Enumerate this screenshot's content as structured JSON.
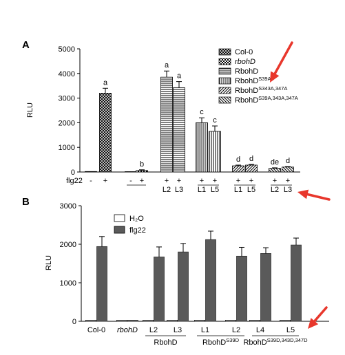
{
  "chart_data": [
    {
      "panel": "A",
      "type": "bar",
      "ylabel": "RLU",
      "ylim": [
        0,
        5000
      ],
      "yticks": [
        "0",
        "1000",
        "2000",
        "3000",
        "4000",
        "5000"
      ],
      "treatment_label": "flg22",
      "legend_placement": "top-right",
      "legend": [
        {
          "name": "Col-0",
          "pattern": "crosshatch"
        },
        {
          "name": "rbohD",
          "pattern": "checker",
          "italic": true
        },
        {
          "name": "RbohD",
          "pattern": "hlines"
        },
        {
          "name": "RbohD",
          "sup": "S39A",
          "pattern": "vlines"
        },
        {
          "name": "RbohD",
          "sup": "S343A,347A",
          "pattern": "diag"
        },
        {
          "name": "RbohD",
          "sup": "S39A,343A,347A",
          "pattern": "antidiag"
        }
      ],
      "bars": [
        {
          "group": 0,
          "genotype": "Col-0",
          "line": "",
          "treatment": "-",
          "value": 20,
          "err": 0,
          "letter": "",
          "pattern": "crosshatch"
        },
        {
          "group": 0,
          "genotype": "Col-0",
          "line": "",
          "treatment": "+",
          "value": 3200,
          "err": 200,
          "letter": "a",
          "pattern": "crosshatch"
        },
        {
          "group": 1,
          "genotype": "rbohD",
          "line": "",
          "treatment": "-",
          "value": 15,
          "err": 0,
          "letter": "",
          "pattern": "checker"
        },
        {
          "group": 1,
          "genotype": "rbohD",
          "line": "",
          "treatment": "+",
          "value": 60,
          "err": 30,
          "letter": "b",
          "pattern": "checker"
        },
        {
          "group": 2,
          "genotype": "RbohD",
          "line": "L2",
          "treatment": "+",
          "value": 3850,
          "err": 250,
          "letter": "a",
          "pattern": "hlines"
        },
        {
          "group": 2,
          "genotype": "RbohD",
          "line": "L3",
          "treatment": "+",
          "value": 3420,
          "err": 250,
          "letter": "a",
          "pattern": "hlines"
        },
        {
          "group": 3,
          "genotype": "RbohD S39A",
          "line": "L1",
          "treatment": "+",
          "value": 2000,
          "err": 200,
          "letter": "c",
          "pattern": "vlines"
        },
        {
          "group": 3,
          "genotype": "RbohD S39A",
          "line": "L5",
          "treatment": "+",
          "value": 1650,
          "err": 220,
          "letter": "c",
          "pattern": "vlines"
        },
        {
          "group": 4,
          "genotype": "RbohD S343A,347A",
          "line": "L1",
          "treatment": "+",
          "value": 250,
          "err": 30,
          "letter": "d",
          "pattern": "diag"
        },
        {
          "group": 4,
          "genotype": "RbohD S343A,347A",
          "line": "L5",
          "treatment": "+",
          "value": 280,
          "err": 30,
          "letter": "d",
          "pattern": "diag"
        },
        {
          "group": 5,
          "genotype": "RbohD S39A,343A,347A",
          "line": "L2",
          "treatment": "+",
          "value": 150,
          "err": 20,
          "letter": "de",
          "pattern": "antidiag"
        },
        {
          "group": 5,
          "genotype": "RbohD S39A,343A,347A",
          "line": "L3",
          "treatment": "+",
          "value": 200,
          "err": 20,
          "letter": "d",
          "pattern": "antidiag"
        }
      ]
    },
    {
      "panel": "B",
      "type": "bar",
      "ylabel": "RLU",
      "ylim": [
        0,
        3000
      ],
      "yticks": [
        "0",
        "1000",
        "2000",
        "3000"
      ],
      "legend_placement": "top-left",
      "series": [
        {
          "name": "H₂O",
          "color": "#ffffff"
        },
        {
          "name": "flg22",
          "color": "#5a5a5a"
        }
      ],
      "categories": [
        "Col-0",
        "rbohD",
        "L2",
        "L3",
        "L1",
        "L2",
        "L4",
        "L5"
      ],
      "category_italic": [
        false,
        true,
        false,
        false,
        false,
        false,
        false,
        false
      ],
      "h2o_values": [
        0,
        0,
        0,
        0,
        0,
        0,
        0,
        0
      ],
      "flg22_values": [
        1940,
        15,
        1670,
        1800,
        2120,
        1690,
        1760,
        1980
      ],
      "flg22_err": [
        260,
        0,
        260,
        220,
        220,
        230,
        150,
        180
      ],
      "groups": [
        {
          "label": "RbohD",
          "sup": "",
          "cats": [
            2,
            3
          ]
        },
        {
          "label": "RbohD",
          "sup": "S39D",
          "cats": [
            4,
            5
          ]
        },
        {
          "label": "RbohD",
          "sup": "S39D,343D,347D",
          "cats": [
            6,
            7
          ]
        }
      ]
    }
  ],
  "accent_color": "#e8372c"
}
